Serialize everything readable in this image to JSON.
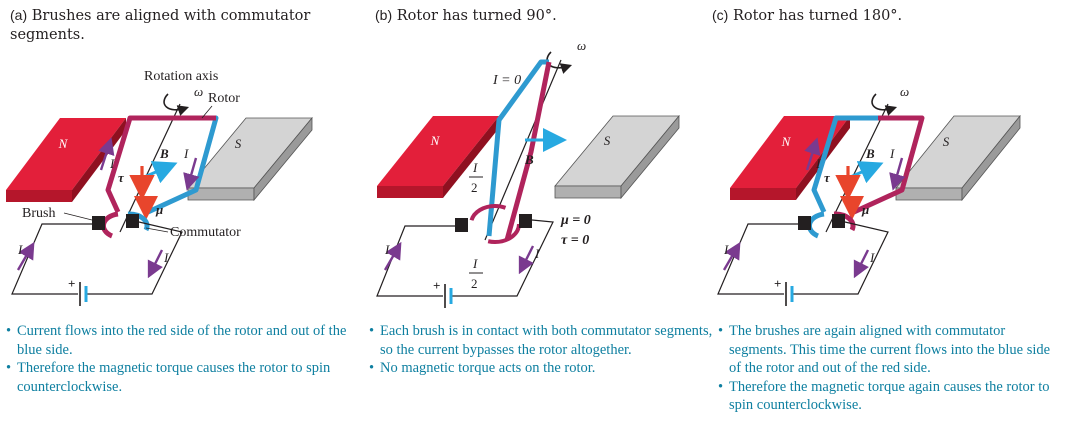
{
  "panels": [
    {
      "tag": "(a)",
      "title": "Brushes are aligned with commutator segments.",
      "labels": {
        "rotation_axis": "Rotation axis",
        "omega": "ω",
        "rotor": "Rotor",
        "magnet_north": "N",
        "magnet_south": "S",
        "b_field": "B",
        "current": "I",
        "torque": "τ",
        "moment": "μ",
        "brush": "Brush",
        "commutator": "Commutator",
        "battery_plus": "+"
      },
      "notes": [
        "Current flows into the red side of the rotor and out of the blue side.",
        "Therefore the magnetic torque causes the rotor to spin counterclockwise."
      ]
    },
    {
      "tag": "(b)",
      "title": "Rotor has turned 90°.",
      "labels": {
        "current_zero": "I = 0",
        "omega": "ω",
        "magnet_north": "N",
        "magnet_south": "S",
        "b_field": "B",
        "half_current_num": "I",
        "half_current_den": "2",
        "moment_zero": "μ = 0",
        "torque_zero": "τ = 0",
        "current": "I",
        "battery_plus": "+"
      },
      "notes": [
        "Each brush is in contact with both commutator segments, so the current bypasses the rotor altogether.",
        "No magnetic torque acts on the rotor."
      ]
    },
    {
      "tag": "(c)",
      "title": "Rotor has turned 180°.",
      "labels": {
        "omega": "ω",
        "magnet_north": "N",
        "magnet_south": "S",
        "b_field": "B",
        "current": "I",
        "torque": "τ",
        "moment": "μ",
        "battery_plus": "+"
      },
      "notes": [
        "The brushes are again aligned with commutator segments. This time the current flows into the blue side of the rotor and out of the red side.",
        "Therefore the magnetic torque again causes the rotor to spin counterclockwise."
      ]
    }
  ],
  "colors": {
    "north_magnet": "#e31f3a",
    "south_magnet": "#cfcfcf",
    "red_rotor": "#b0245c",
    "blue_rotor": "#2e9ad0",
    "b_arrow": "#27a9e1",
    "torque_arrow": "#e8452c",
    "current_arrow": "#7a3a8f",
    "note_text": "#0e7fa0"
  }
}
